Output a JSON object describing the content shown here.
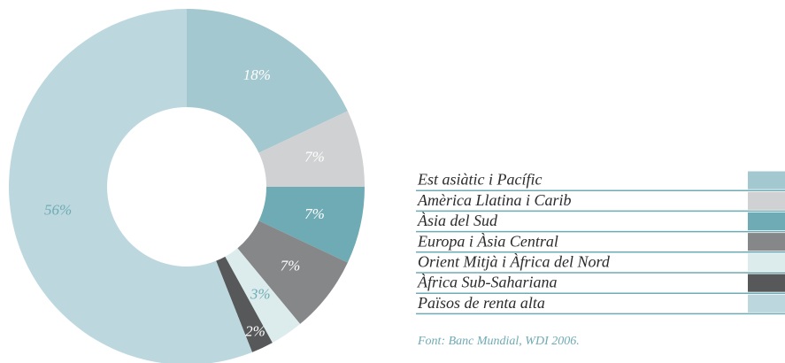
{
  "chart_data": {
    "type": "donut",
    "categories": [
      "Est asiàtic i Pacífic",
      "Amèrica Llatina i  Carib",
      "Àsia del Sud",
      "Europa i Àsia Central",
      "Orient Mitjà i Àfrica del Nord",
      "Àfrica Sub-Sahariana",
      "Països de renta alta"
    ],
    "values": [
      18,
      7,
      7,
      7,
      3,
      2,
      56
    ],
    "value_labels": [
      "18%",
      "7%",
      "7%",
      "7%",
      "3%",
      "2%",
      "56%"
    ],
    "colors": [
      "#a3c8cf",
      "#d0d1d2",
      "#6fabb4",
      "#868789",
      "#dceced",
      "#575859",
      "#bcd8de"
    ],
    "source": "Font: Banc Mundial, WDI 2006."
  }
}
